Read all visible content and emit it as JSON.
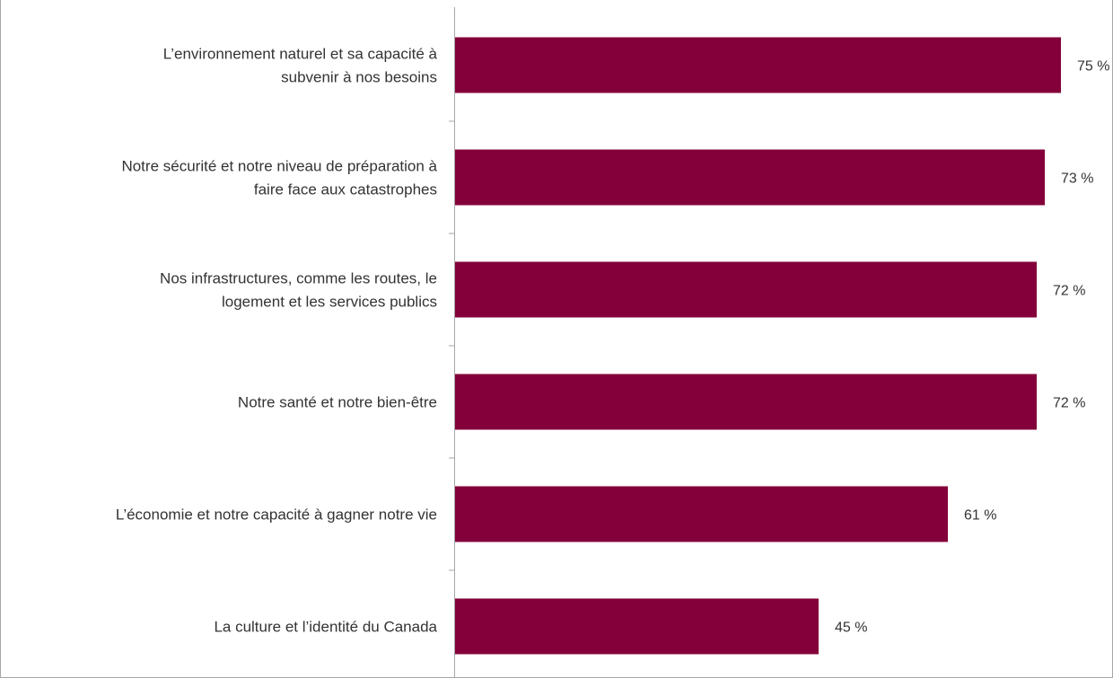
{
  "chart_data": {
    "type": "bar",
    "orientation": "horizontal",
    "title": "",
    "xlabel": "",
    "ylabel": "",
    "xlim": [
      0,
      100
    ],
    "grid": false,
    "bar_color": "#84003a",
    "categories": [
      [
        "L’environnement naturel et sa capacité à",
        "subvenir à nos besoins"
      ],
      [
        "Notre sécurité et notre niveau de préparation à",
        "faire face aux catastrophes"
      ],
      [
        "Nos infrastructures, comme les routes, le",
        "logement et les services publics"
      ],
      [
        "Notre santé et notre bien-être"
      ],
      [
        "L’économie et notre capacité à gagner notre vie"
      ],
      [
        "La culture et l’identité du Canada"
      ]
    ],
    "values": [
      75,
      73,
      72,
      72,
      61,
      45
    ],
    "value_labels": [
      "75 %",
      "73 %",
      "72 %",
      "72 %",
      "61 %",
      "45 %"
    ]
  }
}
